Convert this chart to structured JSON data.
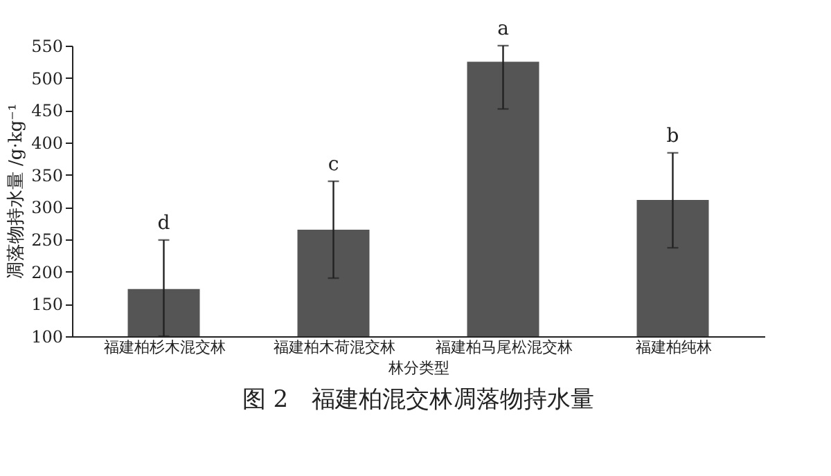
{
  "chart_data": {
    "type": "bar",
    "title": "图 2　福建柏混交林凋落物持水量",
    "xlabel": "林分类型",
    "ylabel": "凋落物持水量 /g·kg⁻¹",
    "categories": [
      "福建柏杉木混交林",
      "福建柏木荷混交林",
      "福建柏马尾松混交林",
      "福建柏纯林"
    ],
    "values": [
      173,
      265,
      525,
      311
    ],
    "errors": [
      [
        100,
        249
      ],
      [
        190,
        340
      ],
      [
        452,
        550
      ],
      [
        237,
        384
      ]
    ],
    "color": "#555555",
    "ylim": [
      100,
      550
    ],
    "yticks": [
      100,
      150,
      200,
      250,
      300,
      350,
      400,
      450,
      500,
      550
    ],
    "grid": false,
    "annotations": [
      {
        "text": "d",
        "x": "福建柏杉木混交林",
        "y": 249
      },
      {
        "text": "c",
        "x": "福建柏木荷混交林",
        "y": 340
      },
      {
        "text": "a",
        "x": "福建柏马尾松混交林",
        "y": 550
      },
      {
        "text": "b",
        "x": "福建柏纯林",
        "y": 384
      }
    ]
  }
}
